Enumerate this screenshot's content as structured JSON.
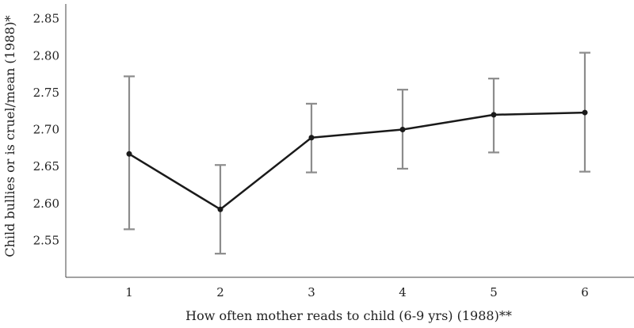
{
  "chart_data": {
    "type": "line",
    "xlabel": "How often mother reads to child (6-9 yrs) (1988)**",
    "ylabel": "Child bullies or is cruel/mean (1988)*",
    "categories": [
      "1",
      "2",
      "3",
      "4",
      "5",
      "6"
    ],
    "ylim": [
      2.5,
      2.87
    ],
    "yticks": [
      "2.55",
      "2.60",
      "2.65",
      "2.70",
      "2.75",
      "2.80",
      "2.85"
    ],
    "series": [
      {
        "values": [
          2.667,
          2.592,
          2.689,
          2.7,
          2.72,
          2.723
        ],
        "lower": [
          2.565,
          2.532,
          2.642,
          2.647,
          2.669,
          2.643
        ],
        "upper": [
          2.772,
          2.652,
          2.735,
          2.754,
          2.769,
          2.804
        ]
      }
    ],
    "grid": false,
    "line_color": "#1a1a1a",
    "errorbar_color": "#8c8c8c"
  }
}
